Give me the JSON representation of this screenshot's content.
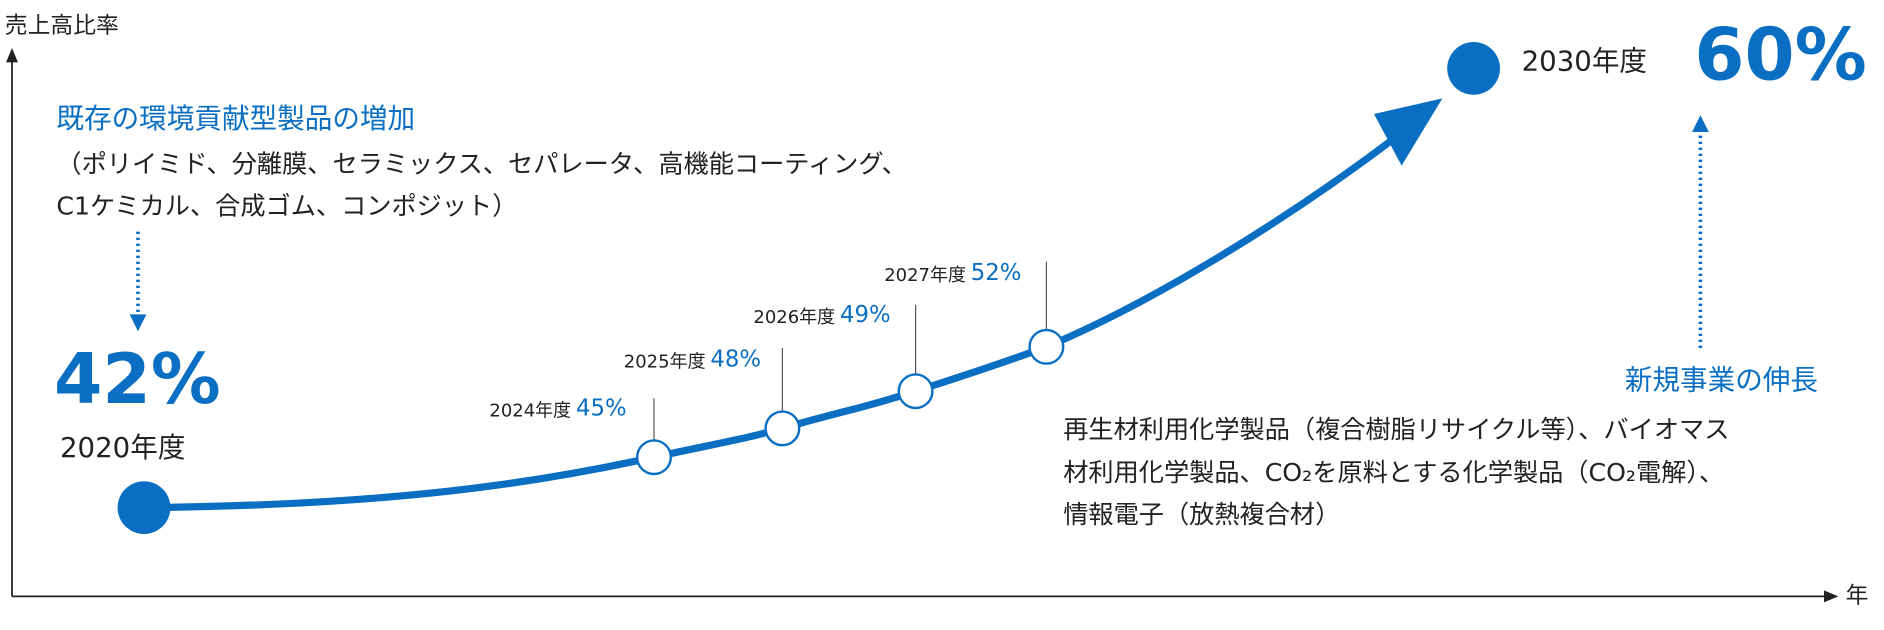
{
  "axes": {
    "y_label": "売上高比率",
    "x_label": "年"
  },
  "start": {
    "value": "42%",
    "label": "2020年度"
  },
  "milestones": [
    {
      "year": "2024年度",
      "value": "45%"
    },
    {
      "year": "2025年度",
      "value": "48%"
    },
    {
      "year": "2026年度",
      "value": "49%"
    },
    {
      "year": "2027年度",
      "value": "52%"
    }
  ],
  "end": {
    "year": "2030年度",
    "value": "60%"
  },
  "left_note": {
    "title": "既存の環境貢献型製品の増加",
    "lines": [
      "（ポリイミド、分離膜、セラミックス、セパレータ、高機能コーティング、",
      "C1ケミカル、合成ゴム、コンポジット）"
    ]
  },
  "right_note": {
    "title": "新規事業の伸長",
    "lines": [
      "再生材利用化学製品（複合樹脂リサイクル等）、バイオマス",
      "材利用化学製品、CO₂を原料とする化学製品（CO₂電解）、",
      "情報電子（放熱複合材）"
    ]
  }
}
